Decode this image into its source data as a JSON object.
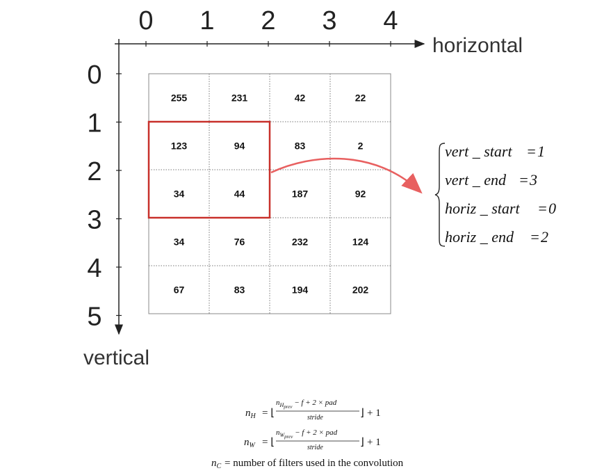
{
  "axes": {
    "horizontal_label": "horizontal",
    "vertical_label": "vertical",
    "horizontal_ticks": [
      "0",
      "1",
      "2",
      "3",
      "4"
    ],
    "vertical_ticks": [
      "0",
      "1",
      "2",
      "3",
      "4",
      "5"
    ]
  },
  "grid": {
    "rows": [
      [
        "255",
        "231",
        "42",
        "22"
      ],
      [
        "123",
        "94",
        "83",
        "2"
      ],
      [
        "34",
        "44",
        "187",
        "92"
      ],
      [
        "34",
        "76",
        "232",
        "124"
      ],
      [
        "67",
        "83",
        "194",
        "202"
      ]
    ],
    "highlight": {
      "vert_start": 1,
      "vert_end": 3,
      "horiz_start": 0,
      "horiz_end": 2
    }
  },
  "equations": [
    {
      "lhs": "vert _ start",
      "rhs": "1"
    },
    {
      "lhs": "vert _ end",
      "rhs": "3"
    },
    {
      "lhs": "horiz _ start",
      "rhs": "0"
    },
    {
      "lhs": "horiz _ end",
      "rhs": "2"
    }
  ],
  "formulas": {
    "nH": {
      "n": "n",
      "sub": "H",
      "num_n": "n",
      "num_sub": "H",
      "num_subsub": "prev",
      "num_rest": " − f + 2 × pad",
      "den": "stride",
      "tail": "+ 1"
    },
    "nW": {
      "n": "n",
      "sub": "W",
      "num_n": "n",
      "num_sub": "W",
      "num_subsub": "prev",
      "num_rest": " − f + 2 × pad",
      "den": "stride",
      "tail": "+ 1"
    },
    "nC": {
      "n": "n",
      "sub": "C",
      "text": "= number of filters used in the convolution"
    }
  },
  "colors": {
    "highlight": "#c8302a",
    "arrow": "#e86060",
    "axis": "#222222",
    "grid_border": "#888888"
  }
}
